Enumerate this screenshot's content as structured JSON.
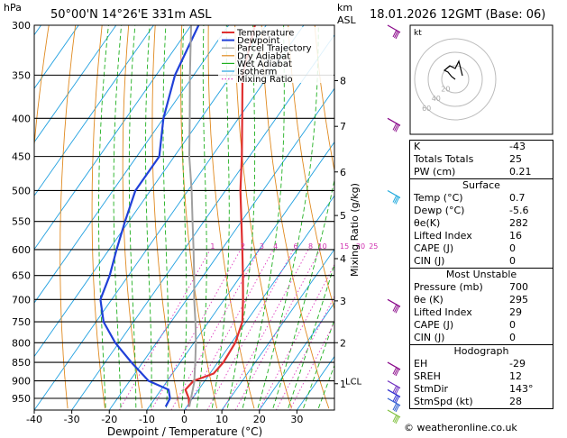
{
  "header": {
    "axis_unit_left": "hPa",
    "location": "50°00'N  14°26'E  331m  ASL",
    "axis_unit_right_1": "km",
    "axis_unit_right_2": "ASL",
    "run": "18.01.2026  12GMT  (Base: 06)"
  },
  "chart_data": {
    "type": "line",
    "title": "",
    "xlabel": "Dewpoint / Temperature (°C)",
    "ylabel_left": "hPa",
    "ylabel_right": "Mixing Ratio (g/kg)",
    "x_ticks": [
      -40,
      -30,
      -20,
      -10,
      0,
      10,
      20,
      30
    ],
    "x_range": [
      -40,
      40
    ],
    "p_ticks": [
      300,
      350,
      400,
      450,
      500,
      550,
      600,
      650,
      700,
      750,
      800,
      850,
      900,
      950
    ],
    "p_range": [
      300,
      985
    ],
    "km_ticks": [
      {
        "label": "8",
        "p": 356
      },
      {
        "label": "7",
        "p": 410
      },
      {
        "label": "6",
        "p": 472
      },
      {
        "label": "5",
        "p": 540
      },
      {
        "label": "4",
        "p": 617
      },
      {
        "label": "3",
        "p": 703
      },
      {
        "label": "2",
        "p": 800
      },
      {
        "label": "1",
        "p": 908
      }
    ],
    "lcl_label": "LCL",
    "lcl_p": 905,
    "mixing_ratio_labels": [
      "1",
      "2",
      "3",
      "4",
      "6",
      "8",
      "10",
      "15",
      "20",
      "25"
    ],
    "mixing_ratio_values": [
      1,
      2,
      3,
      4,
      6,
      8,
      10,
      15,
      20,
      25
    ],
    "legend": [
      {
        "name": "Temperature",
        "color": "#e03030",
        "style": "solid"
      },
      {
        "name": "Dewpoint",
        "color": "#2040d8",
        "style": "solid"
      },
      {
        "name": "Parcel Trajectory",
        "color": "#a0a0a0",
        "style": "solid"
      },
      {
        "name": "Dry Adiabat",
        "color": "#e08a20",
        "style": "solid"
      },
      {
        "name": "Wet Adiabat",
        "color": "#20b020",
        "style": "solid"
      },
      {
        "name": "Isotherm",
        "color": "#20a0e0",
        "style": "solid"
      },
      {
        "name": "Mixing Ratio",
        "color": "#e040c0",
        "style": "dotted"
      }
    ],
    "series": [
      {
        "name": "Temperature",
        "color": "#e03030",
        "points": [
          [
            300,
            -53
          ],
          [
            350,
            -47
          ],
          [
            400,
            -39
          ],
          [
            450,
            -32
          ],
          [
            500,
            -26
          ],
          [
            550,
            -20
          ],
          [
            600,
            -14.5
          ],
          [
            650,
            -9.5
          ],
          [
            700,
            -5
          ],
          [
            750,
            -1
          ],
          [
            800,
            1
          ],
          [
            850,
            1.5
          ],
          [
            880,
            1
          ],
          [
            900,
            -3
          ],
          [
            925,
            -3.5
          ],
          [
            950,
            -1
          ],
          [
            975,
            0.7
          ]
        ]
      },
      {
        "name": "Dewpoint",
        "color": "#2040d8",
        "points": [
          [
            300,
            -68
          ],
          [
            350,
            -65
          ],
          [
            400,
            -60
          ],
          [
            450,
            -54
          ],
          [
            500,
            -54
          ],
          [
            550,
            -51
          ],
          [
            600,
            -48
          ],
          [
            650,
            -45
          ],
          [
            700,
            -43
          ],
          [
            750,
            -38
          ],
          [
            800,
            -31
          ],
          [
            850,
            -23
          ],
          [
            900,
            -15
          ],
          [
            925,
            -8
          ],
          [
            950,
            -6
          ],
          [
            975,
            -5.6
          ]
        ]
      },
      {
        "name": "Parcel Trajectory",
        "color": "#a0a0a0",
        "points": [
          [
            975,
            0.7
          ],
          [
            905,
            -2.5
          ],
          [
            850,
            -6
          ],
          [
            800,
            -9.5
          ],
          [
            750,
            -13.5
          ],
          [
            700,
            -18
          ],
          [
            650,
            -22.5
          ],
          [
            600,
            -27.5
          ],
          [
            550,
            -33
          ],
          [
            500,
            -39
          ],
          [
            450,
            -46
          ],
          [
            400,
            -53
          ],
          [
            350,
            -61
          ],
          [
            300,
            -70
          ]
        ]
      }
    ]
  },
  "hodograph": {
    "label": "kt",
    "ring_labels": [
      "20",
      "40",
      "60"
    ],
    "trace": [
      [
        0,
        0
      ],
      [
        -4,
        3
      ],
      [
        -8,
        8
      ],
      [
        -12,
        10
      ],
      [
        -6,
        15
      ],
      [
        0,
        12
      ],
      [
        4,
        20
      ],
      [
        8,
        4
      ]
    ]
  },
  "indices": {
    "rows": [
      {
        "label": "K",
        "value": "-43"
      },
      {
        "label": "Totals Totals",
        "value": "25"
      },
      {
        "label": "PW (cm)",
        "value": "0.21"
      }
    ],
    "surface": {
      "title": "Surface",
      "rows": [
        {
          "label": "Temp (°C)",
          "value": "0.7"
        },
        {
          "label": "Dewp (°C)",
          "value": "-5.6"
        },
        {
          "label": "θe(K)",
          "value": "282"
        },
        {
          "label": "Lifted Index",
          "value": "16"
        },
        {
          "label": "CAPE (J)",
          "value": "0"
        },
        {
          "label": "CIN (J)",
          "value": "0"
        }
      ]
    },
    "most_unstable": {
      "title": "Most Unstable",
      "rows": [
        {
          "label": "Pressure (mb)",
          "value": "700"
        },
        {
          "label": "θe (K)",
          "value": "295"
        },
        {
          "label": "Lifted Index",
          "value": "29"
        },
        {
          "label": "CAPE (J)",
          "value": "0"
        },
        {
          "label": "CIN (J)",
          "value": "0"
        }
      ]
    },
    "hodograph_box": {
      "title": "Hodograph",
      "rows": [
        {
          "label": "EH",
          "value": "-29"
        },
        {
          "label": "SREH",
          "value": "12"
        },
        {
          "label": "StmDir",
          "value": "143°"
        },
        {
          "label": "StmSpd (kt)",
          "value": "28"
        }
      ]
    }
  },
  "copyright": "© weatheronline.co.uk"
}
